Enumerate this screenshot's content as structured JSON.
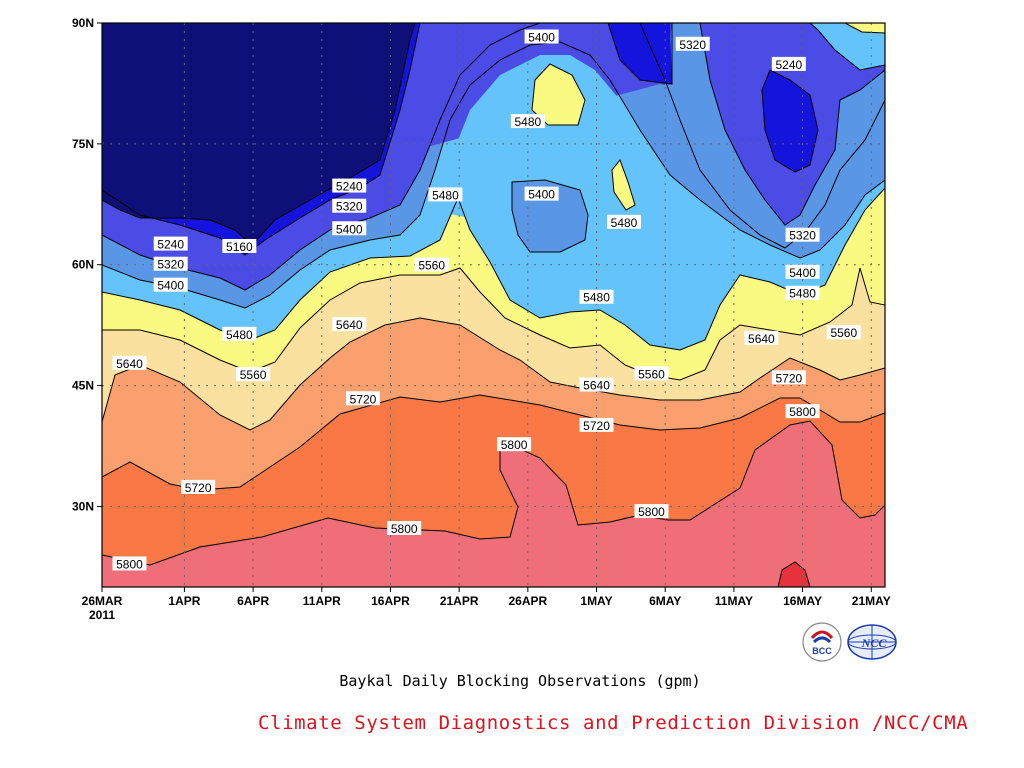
{
  "chart_data": {
    "type": "contour",
    "title": "",
    "subtitle": "",
    "xlabel": "",
    "ylabel": "",
    "x_ticks": [
      "26MAR",
      "1APR",
      "6APR",
      "11APR",
      "16APR",
      "21APR",
      "26APR",
      "1MAY",
      "6MAY",
      "11MAY",
      "16MAY",
      "21MAY"
    ],
    "x_year_label": "2011",
    "y_ticks": [
      "30N",
      "45N",
      "60N",
      "75N",
      "90N"
    ],
    "xlim": [
      "2011-03-26",
      "2011-05-22"
    ],
    "ylim": [
      20,
      90
    ],
    "contour_interval_gpm": 80,
    "levels": [
      5160,
      5240,
      5320,
      5400,
      5480,
      5560,
      5640,
      5720,
      5800,
      5880
    ],
    "fill_colors": [
      "#0f0f78",
      "#1414dc",
      "#4b4be6",
      "#5a96e6",
      "#64c3fa",
      "#fafa82",
      "#fae1a0",
      "#faa06e",
      "#fa7846",
      "#f06e78",
      "#e6323c"
    ],
    "grid": true,
    "contour_labels": [
      {
        "value": "5800",
        "x": "2011-03-28",
        "y": 22.8
      },
      {
        "value": "5720",
        "x": "2011-04-02",
        "y": 32.3
      },
      {
        "value": "5640",
        "x": "2011-03-28",
        "y": 47.7
      },
      {
        "value": "5560",
        "x": "2011-04-06",
        "y": 46.3
      },
      {
        "value": "5480",
        "x": "2011-04-05",
        "y": 51.3
      },
      {
        "value": "5400",
        "x": "2011-03-31",
        "y": 57.4
      },
      {
        "value": "5320",
        "x": "2011-03-31",
        "y": 60.0
      },
      {
        "value": "5240",
        "x": "2011-03-31",
        "y": 62.5
      },
      {
        "value": "5160",
        "x": "2011-04-05",
        "y": 62.2
      },
      {
        "value": "5240",
        "x": "2011-04-13",
        "y": 69.7
      },
      {
        "value": "5320",
        "x": "2011-04-13",
        "y": 67.2
      },
      {
        "value": "5400",
        "x": "2011-04-13",
        "y": 64.4
      },
      {
        "value": "5480",
        "x": "2011-04-20",
        "y": 68.6
      },
      {
        "value": "5560",
        "x": "2011-04-19",
        "y": 59.9
      },
      {
        "value": "5640",
        "x": "2011-04-13",
        "y": 52.5
      },
      {
        "value": "5720",
        "x": "2011-04-14",
        "y": 43.3
      },
      {
        "value": "5800",
        "x": "2011-04-17",
        "y": 27.2
      },
      {
        "value": "5800",
        "x": "2011-04-25",
        "y": 37.6
      },
      {
        "value": "5400",
        "x": "2011-04-27",
        "y": 88.2
      },
      {
        "value": "5480",
        "x": "2011-04-26",
        "y": 77.7
      },
      {
        "value": "5400",
        "x": "2011-04-27",
        "y": 68.7
      },
      {
        "value": "5480",
        "x": "2011-05-03",
        "y": 65.2
      },
      {
        "value": "5480",
        "x": "2011-05-01",
        "y": 55.9
      },
      {
        "value": "5640",
        "x": "2011-05-01",
        "y": 45.0
      },
      {
        "value": "5720",
        "x": "2011-05-01",
        "y": 40.0
      },
      {
        "value": "5800",
        "x": "2011-05-05",
        "y": 29.3
      },
      {
        "value": "5560",
        "x": "2011-05-05",
        "y": 46.4
      },
      {
        "value": "5320",
        "x": "2011-05-08",
        "y": 87.3
      },
      {
        "value": "5240",
        "x": "2011-05-15",
        "y": 84.8
      },
      {
        "value": "5320",
        "x": "2011-05-16",
        "y": 63.6
      },
      {
        "value": "5400",
        "x": "2011-05-16",
        "y": 59.0
      },
      {
        "value": "5480",
        "x": "2011-05-16",
        "y": 56.4
      },
      {
        "value": "5560",
        "x": "2011-05-19",
        "y": 51.5
      },
      {
        "value": "5640",
        "x": "2011-05-13",
        "y": 50.8
      },
      {
        "value": "5720",
        "x": "2011-05-15",
        "y": 45.9
      },
      {
        "value": "5800",
        "x": "2011-05-16",
        "y": 41.7
      }
    ]
  },
  "caption": "Baykal Daily Blocking Observations (gpm)",
  "credit": "Climate System Diagnostics and Prediction Division /NCC/CMA",
  "logos": [
    {
      "icon": "bcc-logo",
      "text": "BCC"
    },
    {
      "icon": "ncc-logo",
      "text": "NCC"
    }
  ]
}
